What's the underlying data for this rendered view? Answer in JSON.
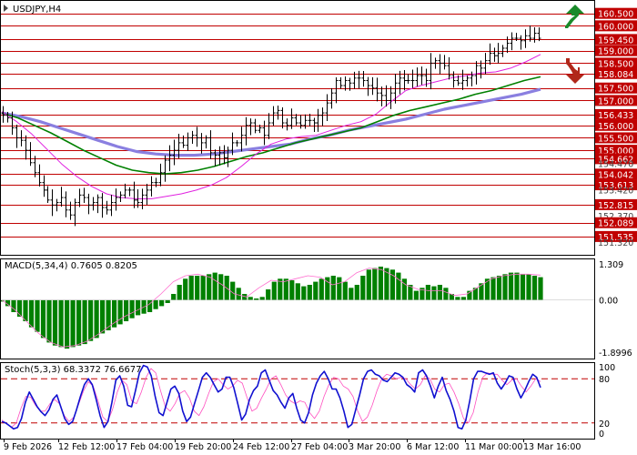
{
  "colors": {
    "frame": "#000000",
    "level_line": "#c00000",
    "level_label_bg": "#c00000",
    "level_label_text": "#ffffff",
    "price_bar": "#000000",
    "ma_fast": "#e020e0",
    "ma_mid": "#008000",
    "ma_slow": "#8a7fe0",
    "macd_hist": "#008000",
    "macd_signal": "#ff6fcf",
    "stoch_main": "#1010d0",
    "stoch_signal": "#ff50c0",
    "stoch_level": "#c00000",
    "arrow_up": "#1a8a2a",
    "arrow_down": "#b0281a"
  },
  "chart_data": [
    {
      "type": "line",
      "title": "USDJPY,H4",
      "subtitle": "",
      "xlabel": "",
      "ylabel": "",
      "ylim": [
        150.8,
        161.0
      ],
      "grid": false,
      "x_tick_labels": [
        "9 Feb 2026",
        "12 Feb 12:00",
        "17 Feb 04:00",
        "19 Feb 20:00",
        "24 Feb 12:00",
        "27 Feb 04:00",
        "3 Mar 20:00",
        "6 Mar 12:00",
        "11 Mar 00:00",
        "13 Mar 16:00"
      ],
      "y_tick_labels": [
        "160.500",
        "160.000",
        "159.450",
        "159.000",
        "158.500",
        "158.084",
        "157.500",
        "157.000",
        "156.433",
        "156.000",
        "155.500",
        "155.000",
        "154.662",
        "154.470",
        "154.042",
        "153.613",
        "153.420",
        "152.815",
        "152.370",
        "152.089",
        "151.535",
        "151.320"
      ],
      "resistance_support_levels": [
        160.5,
        160.0,
        159.45,
        159.0,
        158.5,
        158.084,
        157.5,
        157.0,
        156.433,
        156.0,
        155.5,
        155.0,
        154.662,
        154.042,
        153.613,
        152.815,
        152.089,
        151.535
      ],
      "arrows": [
        "up",
        "down"
      ],
      "series": [
        {
          "key": "price",
          "values": [
            156.4,
            156.3,
            155.9,
            155.5,
            155.4,
            155.0,
            154.5,
            154.1,
            153.7,
            153.4,
            153.0,
            152.8,
            152.9,
            153.1,
            152.6,
            152.4,
            152.9,
            153.2,
            153.1,
            152.8,
            152.9,
            153.1,
            152.7,
            152.6,
            152.9,
            153.1,
            153.2,
            153.4,
            153.4,
            153.0,
            152.9,
            153.2,
            153.4,
            153.7,
            153.7,
            154.1,
            154.6,
            154.8,
            155.0,
            155.3,
            155.2,
            155.5,
            155.6,
            155.5,
            155.3,
            155.5,
            154.9,
            154.8,
            154.9,
            154.7,
            155.0,
            155.3,
            155.3,
            155.6,
            156.0,
            156.1,
            155.8,
            155.9,
            155.6,
            156.1,
            156.5,
            156.6,
            156.1,
            156.0,
            156.3,
            156.1,
            156.0,
            156.2,
            156.2,
            156.1,
            156.4,
            156.5,
            156.9,
            157.3,
            157.8,
            157.6,
            157.8,
            157.7,
            157.9,
            157.9,
            157.8,
            157.6,
            157.5,
            157.3,
            157.2,
            157.0,
            157.3,
            157.7,
            157.9,
            157.8,
            157.8,
            157.8,
            158.0,
            158.0,
            157.8,
            158.5,
            158.6,
            158.5,
            158.4,
            158.0,
            157.8,
            157.7,
            157.8,
            157.9,
            158.0,
            158.4,
            158.3,
            158.6,
            158.9,
            158.8,
            158.9,
            159.1,
            159.3,
            159.5,
            159.5,
            159.4,
            159.6,
            159.5,
            159.7,
            159.5
          ]
        },
        {
          "key": "ma_fast",
          "values": [
            156.55,
            156.15,
            155.65,
            155.05,
            154.45,
            153.95,
            153.55,
            153.25,
            153.1,
            153.05,
            153.05,
            153.15,
            153.25,
            153.4,
            153.6,
            153.9,
            154.35,
            154.85,
            155.25,
            155.45,
            155.55,
            155.6,
            155.8,
            156.0,
            156.15,
            156.45,
            156.95,
            157.4,
            157.6,
            157.75,
            157.9,
            158.0,
            158.1,
            158.15,
            158.3,
            158.55,
            158.85
          ]
        },
        {
          "key": "ma_mid",
          "values": [
            156.5,
            156.3,
            156.0,
            155.7,
            155.35,
            155.0,
            154.7,
            154.4,
            154.2,
            154.1,
            154.05,
            154.1,
            154.2,
            154.35,
            154.55,
            154.75,
            154.9,
            155.1,
            155.3,
            155.45,
            155.6,
            155.75,
            155.9,
            156.15,
            156.4,
            156.6,
            156.75,
            156.9,
            157.05,
            157.25,
            157.4,
            157.6,
            157.8,
            157.95
          ]
        },
        {
          "key": "ma_slow",
          "values": [
            156.5,
            156.35,
            156.15,
            155.9,
            155.65,
            155.4,
            155.15,
            154.95,
            154.85,
            154.8,
            154.8,
            154.85,
            154.95,
            155.05,
            155.15,
            155.25,
            155.45,
            155.6,
            155.8,
            155.95,
            156.1,
            156.25,
            156.45,
            156.65,
            156.8,
            156.95,
            157.1,
            157.25,
            157.45
          ]
        }
      ]
    },
    {
      "type": "bar",
      "title": "MACD(5,34,4) 0.7605 0.8205",
      "ylim": [
        -1.8996,
        1.309
      ],
      "y_tick_labels": [
        "1.309",
        "0.00",
        "-1.8996"
      ],
      "series": [
        {
          "key": "histogram",
          "values": [
            -0.05,
            -0.2,
            -0.4,
            -0.55,
            -0.7,
            -0.9,
            -1.05,
            -1.25,
            -1.4,
            -1.5,
            -1.55,
            -1.6,
            -1.55,
            -1.5,
            -1.45,
            -1.35,
            -1.25,
            -1.1,
            -1.0,
            -0.9,
            -0.8,
            -0.7,
            -0.6,
            -0.5,
            -0.45,
            -0.4,
            -0.3,
            -0.2,
            -0.1,
            0.2,
            0.5,
            0.7,
            0.8,
            0.8,
            0.8,
            0.85,
            0.9,
            0.85,
            0.8,
            0.6,
            0.4,
            0.2,
            0.1,
            0.05,
            0.1,
            0.35,
            0.6,
            0.7,
            0.7,
            0.65,
            0.55,
            0.45,
            0.5,
            0.6,
            0.7,
            0.75,
            0.8,
            0.75,
            0.6,
            0.4,
            0.5,
            0.8,
            1.0,
            1.05,
            1.1,
            1.05,
            1.0,
            0.9,
            0.7,
            0.5,
            0.3,
            0.4,
            0.5,
            0.45,
            0.5,
            0.4,
            0.2,
            0.1,
            0.1,
            0.3,
            0.4,
            0.55,
            0.7,
            0.75,
            0.8,
            0.85,
            0.9,
            0.9,
            0.85,
            0.85,
            0.8,
            0.75
          ]
        },
        {
          "key": "signal",
          "values": [
            0.0,
            -0.3,
            -0.7,
            -1.1,
            -1.4,
            -1.55,
            -1.5,
            -1.35,
            -1.1,
            -0.8,
            -0.55,
            -0.35,
            -0.15,
            0.2,
            0.6,
            0.8,
            0.85,
            0.75,
            0.5,
            0.2,
            0.1,
            0.4,
            0.65,
            0.6,
            0.7,
            0.8,
            0.75,
            0.5,
            0.6,
            0.9,
            1.05,
            1.0,
            0.8,
            0.5,
            0.35,
            0.3,
            0.3,
            0.15,
            0.2,
            0.45,
            0.7,
            0.8,
            0.85,
            0.85,
            0.82
          ]
        }
      ]
    },
    {
      "type": "line",
      "title": "Stoch(5,3,3) 68.3372 76.6677",
      "ylim": [
        0,
        100
      ],
      "levels": [
        80,
        20
      ],
      "y_tick_labels": [
        "100",
        "80",
        "20",
        "0"
      ],
      "series": [
        {
          "key": "main",
          "values": [
            22,
            20,
            16,
            12,
            14,
            26,
            48,
            62,
            52,
            42,
            35,
            30,
            38,
            52,
            58,
            42,
            26,
            18,
            22,
            38,
            56,
            72,
            80,
            72,
            52,
            30,
            14,
            22,
            48,
            78,
            84,
            70,
            44,
            42,
            64,
            88,
            98,
            96,
            84,
            56,
            34,
            30,
            48,
            66,
            70,
            60,
            36,
            22,
            28,
            46,
            64,
            82,
            88,
            82,
            72,
            62,
            66,
            82,
            82,
            68,
            46,
            24,
            32,
            52,
            64,
            70,
            88,
            92,
            78,
            64,
            58,
            48,
            40,
            54,
            60,
            40,
            24,
            20,
            34,
            58,
            74,
            84,
            90,
            80,
            66,
            66,
            54,
            36,
            14,
            18,
            38,
            58,
            80,
            90,
            92,
            86,
            84,
            78,
            76,
            82,
            88,
            86,
            82,
            72,
            68,
            62,
            88,
            92,
            84,
            70,
            54,
            70,
            82,
            64,
            52,
            36,
            14,
            12,
            24,
            50,
            80,
            90,
            90,
            88,
            86,
            88,
            74,
            66,
            74,
            84,
            82,
            66,
            54,
            64,
            76,
            86,
            82,
            68
          ]
        },
        {
          "key": "signal",
          "values": [
            24,
            19,
            14,
            20,
            40,
            56,
            55,
            44,
            36,
            36,
            46,
            52,
            46,
            30,
            22,
            28,
            46,
            64,
            76,
            70,
            50,
            28,
            22,
            38,
            62,
            78,
            72,
            50,
            46,
            62,
            82,
            94,
            88,
            64,
            42,
            36,
            46,
            60,
            64,
            54,
            36,
            30,
            42,
            60,
            76,
            80,
            72,
            66,
            70,
            78,
            74,
            54,
            36,
            40,
            54,
            66,
            80,
            84,
            72,
            58,
            50,
            46,
            50,
            48,
            34,
            26,
            36,
            56,
            72,
            82,
            80,
            70,
            66,
            56,
            36,
            22,
            28,
            44,
            64,
            80,
            86,
            84,
            80,
            82,
            80,
            72,
            66,
            72,
            84,
            80,
            66,
            62,
            72,
            74,
            62,
            46,
            26,
            20,
            34,
            62,
            82,
            88,
            86,
            86,
            78,
            72,
            78,
            80,
            70,
            62,
            70,
            80,
            76
          ]
        }
      ]
    }
  ]
}
